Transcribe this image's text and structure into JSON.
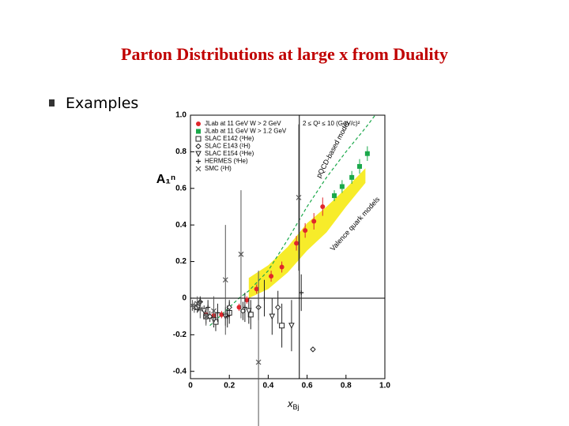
{
  "slide": {
    "title": "Parton Distributions at large x from Duality",
    "bullet": "Examples"
  },
  "chart_data": {
    "type": "scatter",
    "y_label": "A₁ⁿ",
    "x_label": "x",
    "x_label_sub": "Bj",
    "annotation": "2 ≤ Q² ≤ 10 (GeV/c)²",
    "xlim": [
      0,
      1
    ],
    "ylim": [
      -0.44,
      1
    ],
    "xticks": [
      0,
      0.2,
      0.4,
      0.6,
      0.8,
      {
        "value": 1,
        "label": "1.0"
      }
    ],
    "yticks": [
      -0.4,
      -0.2,
      0,
      0.2,
      0.4,
      0.6,
      0.8,
      {
        "value": 1,
        "label": "1.0"
      }
    ],
    "hlines": [
      0
    ],
    "vlines": [
      0.56
    ],
    "series": [
      {
        "name": "JLab at 11 GeV W > 2 GeV",
        "color": "#e0262b",
        "marker": "circle",
        "x": [
          0.08,
          0.12,
          0.16,
          0.2,
          0.25,
          0.29,
          0.34,
          0.415,
          0.47,
          0.545,
          0.59,
          0.635,
          0.68
        ],
        "values": [
          -0.09,
          -0.095,
          -0.09,
          -0.085,
          -0.05,
          -0.01,
          0.05,
          0.12,
          0.17,
          0.3,
          0.37,
          0.42,
          0.5
        ],
        "errors": [
          0.02,
          0.02,
          0.02,
          0.02,
          0.02,
          0.02,
          0.025,
          0.03,
          0.03,
          0.04,
          0.04,
          0.045,
          0.05
        ]
      },
      {
        "name": "JLab at 11 GeV W > 1.2 GeV",
        "color": "#1aa84a",
        "marker": "square",
        "x": [
          0.74,
          0.78,
          0.83,
          0.87,
          0.91
        ],
        "values": [
          0.56,
          0.61,
          0.66,
          0.72,
          0.79
        ],
        "errors": [
          0.03,
          0.035,
          0.035,
          0.04,
          0.04
        ]
      },
      {
        "name": "SLAC E142 (³He)",
        "color": "#222222",
        "marker": "opensquare",
        "x": [
          0.035,
          0.08,
          0.13,
          0.2,
          0.31,
          0.47
        ],
        "values": [
          -0.05,
          -0.1,
          -0.13,
          -0.08,
          -0.09,
          -0.15
        ],
        "errors": [
          0.03,
          0.04,
          0.05,
          0.06,
          0.08,
          0.12
        ]
      },
      {
        "name": "SLAC E143 (²H)",
        "color": "#222222",
        "marker": "diamond",
        "x": [
          0.05,
          0.1,
          0.2,
          0.27,
          0.35,
          0.45,
          0.63
        ],
        "values": [
          -0.02,
          -0.1,
          -0.05,
          -0.07,
          -0.05,
          -0.05,
          -0.28
        ],
        "errors": [
          0.02,
          0.03,
          0.04,
          0.05,
          0.07,
          0.09,
          0.0
        ]
      },
      {
        "name": "SLAC E154 (³He)",
        "color": "#222222",
        "marker": "triangle",
        "x": [
          0.04,
          0.07,
          0.12,
          0.18,
          0.3,
          0.42,
          0.52
        ],
        "values": [
          -0.05,
          -0.07,
          -0.12,
          -0.1,
          -0.07,
          -0.1,
          -0.15
        ],
        "errors": [
          0.02,
          0.03,
          0.04,
          0.05,
          0.07,
          0.1,
          0.14
        ]
      },
      {
        "name": "HERMES (³He)",
        "color": "#222222",
        "marker": "plus",
        "x": [
          0.05,
          0.09,
          0.14,
          0.19,
          0.28,
          0.38,
          0.57
        ],
        "values": [
          -0.02,
          -0.05,
          -0.08,
          -0.1,
          -0.05,
          0.0,
          0.03
        ],
        "errors": [
          0.03,
          0.04,
          0.05,
          0.06,
          0.08,
          0.1,
          0.1
        ]
      },
      {
        "name": "SMC (²H)",
        "color": "#555555",
        "marker": "cross",
        "x": [
          0.01,
          0.02,
          0.035,
          0.05,
          0.08,
          0.12,
          0.18,
          0.26,
          0.35,
          0.557
        ],
        "values": [
          -0.04,
          -0.05,
          -0.03,
          -0.06,
          -0.1,
          -0.07,
          0.1,
          0.24,
          -0.35,
          0.55
        ],
        "errors": [
          0.03,
          0.03,
          0.04,
          0.05,
          0.05,
          0.08,
          0.3,
          0.35,
          0.5,
          0.4
        ]
      }
    ],
    "curves": [
      {
        "name": "pQCD-based model",
        "color": "#1aa84a",
        "x": [
          0.1,
          0.15,
          0.2,
          0.25,
          0.3,
          0.4,
          0.5,
          0.6,
          0.7,
          0.8,
          0.9,
          0.95
        ],
        "values": [
          -0.15,
          -0.1,
          -0.05,
          0.0,
          0.04,
          0.15,
          0.32,
          0.5,
          0.66,
          0.8,
          0.93,
          1.0
        ]
      }
    ],
    "bands": [
      {
        "name": "Valence quark models",
        "color": "#f7ec2a",
        "x": [
          0.3,
          0.4,
          0.5,
          0.6,
          0.7,
          0.8,
          0.9
        ],
        "lower": [
          0.0,
          0.05,
          0.14,
          0.26,
          0.36,
          0.5,
          0.63
        ],
        "upper": [
          0.11,
          0.18,
          0.28,
          0.41,
          0.5,
          0.6,
          0.71
        ]
      }
    ]
  }
}
